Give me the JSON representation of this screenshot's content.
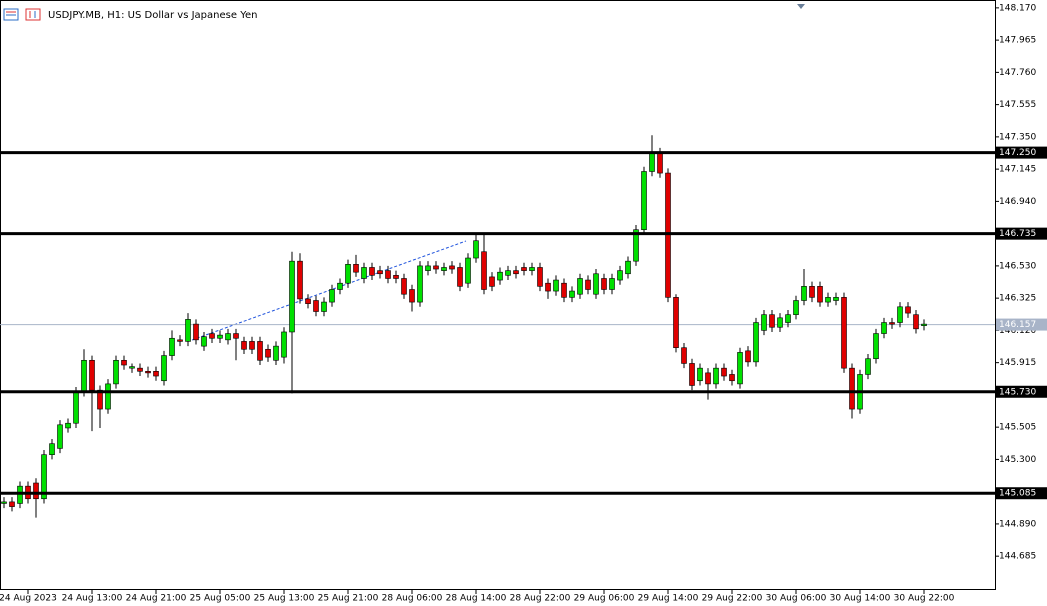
{
  "chart_data": {
    "type": "candlestick",
    "title": "USDJPY.MB, H1:  US Dollar vs Japanese Yen",
    "categories": [
      null,
      null,
      null,
      "24 Aug 2023",
      null,
      null,
      null,
      null,
      null,
      null,
      null,
      "24 Aug 13:00",
      null,
      null,
      null,
      null,
      null,
      null,
      null,
      "24 Aug 21:00",
      null,
      null,
      null,
      null,
      null,
      null,
      null,
      "25 Aug 05:00",
      null,
      null,
      null,
      null,
      null,
      null,
      null,
      "25 Aug 13:00",
      null,
      null,
      null,
      null,
      null,
      null,
      null,
      "25 Aug 21:00",
      null,
      null,
      null,
      null,
      null,
      null,
      null,
      "28 Aug 06:00",
      null,
      null,
      null,
      null,
      null,
      null,
      null,
      "28 Aug 14:00",
      null,
      null,
      null,
      null,
      null,
      null,
      null,
      "28 Aug 22:00",
      null,
      null,
      null,
      null,
      null,
      null,
      null,
      "29 Aug 06:00",
      null,
      null,
      null,
      null,
      null,
      null,
      null,
      "29 Aug 14:00",
      null,
      null,
      null,
      null,
      null,
      null,
      null,
      "29 Aug 22:00",
      null,
      null,
      null,
      null,
      null,
      null,
      null,
      "30 Aug 06:00",
      null,
      null,
      null,
      null,
      null,
      null,
      null,
      "30 Aug 14:00",
      null,
      null,
      null,
      null,
      null,
      null,
      null,
      "30 Aug 22:00"
    ],
    "open": [
      145.02,
      145.03,
      145.02,
      145.13,
      145.15,
      145.05,
      145.33,
      145.37,
      145.5,
      145.53,
      145.73,
      145.93,
      145.74,
      145.62,
      145.78,
      145.93,
      145.88,
      145.88,
      145.86,
      145.86,
      145.8,
      145.96,
      146.06,
      146.05,
      146.16,
      146.02,
      146.1,
      146.07,
      146.06,
      146.1,
      146.05,
      146.05,
      146.05,
      146.0,
      145.93,
      145.95,
      146.11,
      146.56,
      146.32,
      146.31,
      146.24,
      146.3,
      146.38,
      146.42,
      146.54,
      146.45,
      146.52,
      146.5,
      146.5,
      146.47,
      146.45,
      146.38,
      146.3,
      146.5,
      146.53,
      146.5,
      146.53,
      146.52,
      146.42,
      146.58,
      146.62,
      146.46,
      146.44,
      146.47,
      146.5,
      146.52,
      146.5,
      146.52,
      146.42,
      146.37,
      146.42,
      146.33,
      146.35,
      146.44,
      146.35,
      146.45,
      146.38,
      146.44,
      146.48,
      146.56,
      146.76,
      147.13,
      147.25,
      147.12,
      146.33,
      146.01,
      145.91,
      145.8,
      145.85,
      145.78,
      145.88,
      145.84,
      145.78,
      145.99,
      145.92,
      146.12,
      146.22,
      146.14,
      146.17,
      146.22,
      146.31,
      146.4,
      146.4,
      146.3,
      146.31,
      146.33,
      145.88,
      145.62,
      145.84,
      145.94,
      146.1,
      146.17,
      146.17,
      146.27,
      146.22,
      146.15
    ],
    "high": [
      145.06,
      145.06,
      145.16,
      145.16,
      145.18,
      145.36,
      145.43,
      145.55,
      145.56,
      145.76,
      146.0,
      145.96,
      145.77,
      145.81,
      145.96,
      145.96,
      145.91,
      145.91,
      145.89,
      145.89,
      145.99,
      146.12,
      146.09,
      146.23,
      146.19,
      146.11,
      146.13,
      146.12,
      146.13,
      146.13,
      146.08,
      146.08,
      146.08,
      146.03,
      146.05,
      146.14,
      146.62,
      146.61,
      146.35,
      146.34,
      146.33,
      146.41,
      146.45,
      146.57,
      146.6,
      146.55,
      146.55,
      146.53,
      146.53,
      146.5,
      146.48,
      146.41,
      146.56,
      146.56,
      146.56,
      146.55,
      146.56,
      146.55,
      146.61,
      146.74,
      146.73,
      146.49,
      146.52,
      146.53,
      146.53,
      146.55,
      146.55,
      146.55,
      146.45,
      146.47,
      146.45,
      146.4,
      146.48,
      146.47,
      146.51,
      146.48,
      146.48,
      146.53,
      146.59,
      146.79,
      147.16,
      147.36,
      147.28,
      147.15,
      146.35,
      146.04,
      145.94,
      145.91,
      145.88,
      145.91,
      145.91,
      145.87,
      146.01,
      146.02,
      146.2,
      146.25,
      146.25,
      146.23,
      146.25,
      146.34,
      146.51,
      146.43,
      146.43,
      146.36,
      146.36,
      146.36,
      145.91,
      145.87,
      145.97,
      146.13,
      146.2,
      146.2,
      146.3,
      146.3,
      146.25,
      146.19
    ],
    "low": [
      144.99,
      144.97,
      144.99,
      145.02,
      144.93,
      145.02,
      145.3,
      145.34,
      145.47,
      145.5,
      145.7,
      145.48,
      145.5,
      145.59,
      145.75,
      145.87,
      145.85,
      145.83,
      145.82,
      145.8,
      145.77,
      145.93,
      146.02,
      146.02,
      146.03,
      145.99,
      146.04,
      146.04,
      146.03,
      145.93,
      145.97,
      145.97,
      145.9,
      145.92,
      145.9,
      145.91,
      145.72,
      146.29,
      146.26,
      146.21,
      146.21,
      146.27,
      146.35,
      146.39,
      146.46,
      146.42,
      146.44,
      146.45,
      146.42,
      146.42,
      146.32,
      146.24,
      146.27,
      146.47,
      146.48,
      146.47,
      146.48,
      146.37,
      146.39,
      146.55,
      146.35,
      146.37,
      146.41,
      146.44,
      146.45,
      146.47,
      146.47,
      146.37,
      146.32,
      146.34,
      146.3,
      146.3,
      146.32,
      146.35,
      146.32,
      146.35,
      146.35,
      146.41,
      146.45,
      146.53,
      146.73,
      147.1,
      147.09,
      146.3,
      145.98,
      145.88,
      145.74,
      145.77,
      145.68,
      145.75,
      145.8,
      145.77,
      145.75,
      145.89,
      145.89,
      146.09,
      146.11,
      146.11,
      146.14,
      146.19,
      146.28,
      146.3,
      146.27,
      146.27,
      146.28,
      145.85,
      145.56,
      145.59,
      145.81,
      145.91,
      146.07,
      146.13,
      146.14,
      146.2,
      146.1,
      146.12
    ],
    "close": [
      145.03,
      145.0,
      145.13,
      145.05,
      145.05,
      145.33,
      145.4,
      145.52,
      145.53,
      145.73,
      145.93,
      145.74,
      145.62,
      145.78,
      145.93,
      145.9,
      145.89,
      145.86,
      145.85,
      145.83,
      145.96,
      146.07,
      146.05,
      146.19,
      146.06,
      146.08,
      146.07,
      146.09,
      146.1,
      146.07,
      146.0,
      146.0,
      145.93,
      145.95,
      146.02,
      146.11,
      146.56,
      146.32,
      146.29,
      146.24,
      146.3,
      146.38,
      146.42,
      146.54,
      146.49,
      146.52,
      146.47,
      146.48,
      146.45,
      146.45,
      146.35,
      146.3,
      146.53,
      146.53,
      146.51,
      146.52,
      146.51,
      146.4,
      146.58,
      146.69,
      146.38,
      146.4,
      146.49,
      146.5,
      146.48,
      146.5,
      146.52,
      146.4,
      146.37,
      146.44,
      146.33,
      146.37,
      146.45,
      146.38,
      146.48,
      146.38,
      146.45,
      146.5,
      146.56,
      146.76,
      147.13,
      147.25,
      147.12,
      146.33,
      146.01,
      145.91,
      145.77,
      145.88,
      145.78,
      145.88,
      145.83,
      145.8,
      145.98,
      145.92,
      146.17,
      146.22,
      146.14,
      146.2,
      146.22,
      146.31,
      146.4,
      146.33,
      146.3,
      146.33,
      146.33,
      145.88,
      145.62,
      145.84,
      145.94,
      146.1,
      146.17,
      146.16,
      146.27,
      146.23,
      146.13,
      146.16
    ],
    "up_color": "#00e000",
    "down_color": "#e00000",
    "ylim": [
      144.47,
      148.22
    ],
    "yticks": [
      {
        "value": 148.17,
        "label": "148.170"
      },
      147.965,
      {
        "value": 147.76,
        "label": "147.760"
      },
      147.555,
      {
        "value": 147.35,
        "label": "147.350"
      },
      147.145,
      {
        "value": 146.94,
        "label": "146.940"
      },
      {
        "value": 146.53,
        "label": "146.530"
      },
      146.325,
      {
        "value": 146.12,
        "label": "146.120"
      },
      145.915,
      145.505,
      {
        "value": 145.3,
        "label": "145.300"
      },
      {
        "value": 144.89,
        "label": "144.890"
      },
      144.685
    ],
    "levels": [
      {
        "value": 147.25,
        "label": "147.250"
      },
      146.735,
      {
        "value": 145.73,
        "label": "145.730"
      },
      145.085
    ],
    "current_price": 146.157
  }
}
